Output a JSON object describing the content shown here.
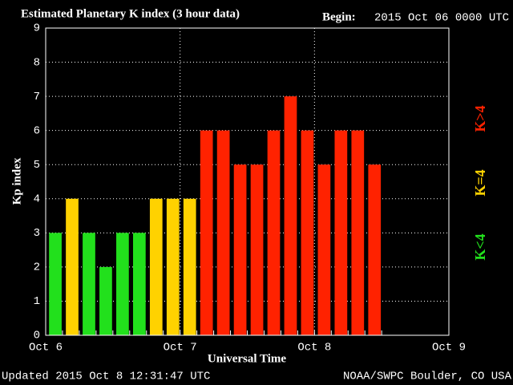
{
  "chart_data": {
    "type": "bar",
    "title": "Estimated Planetary K index (3 hour data)",
    "begin_label": "Begin:",
    "begin": "2015 Oct 06 0000 UTC",
    "ylabel": "Kp index",
    "xlabel": "Universal Time",
    "updated": "Updated 2015 Oct  8 12:31:47 UTC",
    "source": "NOAA/SWPC Boulder, CO USA",
    "legend": [
      {
        "label": "K>4",
        "color": "#ff2200"
      },
      {
        "label": "K=4",
        "color": "#ffd200"
      },
      {
        "label": "K<4",
        "color": "#22e01c"
      }
    ],
    "x": [
      0,
      3,
      6,
      9,
      12,
      15,
      18,
      21,
      24,
      27,
      30,
      33,
      36,
      39,
      42,
      45,
      48,
      51,
      54,
      57
    ],
    "values": [
      3,
      4,
      3,
      2,
      3,
      3,
      4,
      4,
      4,
      6,
      6,
      5,
      5,
      6,
      7,
      6,
      5,
      6,
      6,
      5
    ],
    "colors": [
      "#22e01c",
      "#ffd200",
      "#22e01c",
      "#22e01c",
      "#22e01c",
      "#22e01c",
      "#ffd200",
      "#ffd200",
      "#ffd200",
      "#ff2200",
      "#ff2200",
      "#ff2200",
      "#ff2200",
      "#ff2200",
      "#ff2200",
      "#ff2200",
      "#ff2200",
      "#ff2200",
      "#ff2200",
      "#ff2200"
    ],
    "xlim": [
      0,
      72
    ],
    "xticks": [
      {
        "value": 0,
        "label": "Oct 6"
      },
      {
        "value": 24,
        "label": "Oct 7"
      },
      {
        "value": 48,
        "label": "Oct 8"
      },
      {
        "value": 72,
        "label": "Oct 9"
      }
    ],
    "ylim": [
      0,
      9
    ],
    "yticks": [
      0,
      1,
      2,
      3,
      4,
      5,
      6,
      7,
      8,
      9
    ],
    "grid": true
  }
}
